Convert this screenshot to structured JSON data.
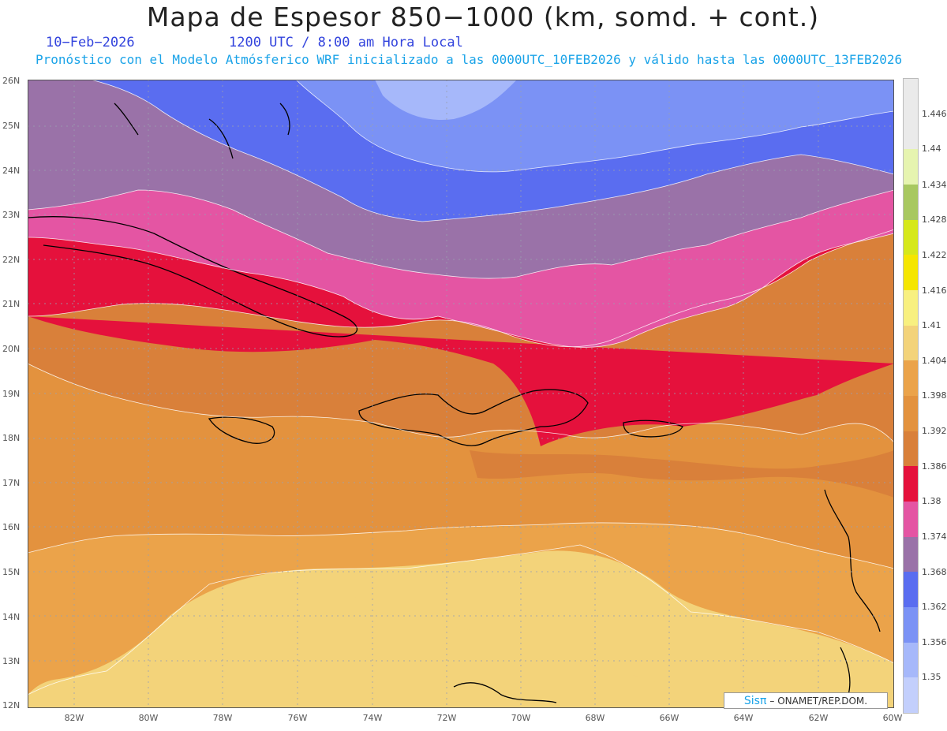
{
  "header": {
    "title": "Mapa de Espesor 850−1000 (km, somd. + cont.)",
    "date": "10−Feb−2026",
    "time": "1200 UTC / 8:00 am Hora Local",
    "description": "Pronóstico con el Modelo Atmósferico WRF inicializado a las 0000UTC_10FEB2026 y válido hasta las  0000UTC_13FEB2026"
  },
  "map": {
    "lat_labels": [
      "26N",
      "25N",
      "24N",
      "23N",
      "22N",
      "21N",
      "20N",
      "19N",
      "18N",
      "17N",
      "16N",
      "15N",
      "14N",
      "13N",
      "12N"
    ],
    "lon_labels": [
      "82W",
      "80W",
      "78W",
      "76W",
      "74W",
      "72W",
      "70W",
      "68W",
      "66W",
      "64W",
      "62W",
      "60W"
    ],
    "lat_range": [
      12,
      26
    ],
    "lon_range": [
      -83.2,
      -60
    ]
  },
  "colorbar": {
    "labels": [
      "1.446",
      "1.44",
      "1.434",
      "1.428",
      "1.422",
      "1.416",
      "1.41",
      "1.404",
      "1.398",
      "1.392",
      "1.386",
      "1.38",
      "1.374",
      "1.368",
      "1.362",
      "1.356",
      "1.35"
    ],
    "colors": [
      "#eaeaea",
      "#e6f4b0",
      "#a8c860",
      "#d6e81a",
      "#f5e600",
      "#f8f080",
      "#f3d37a",
      "#eba34a",
      "#e3923e",
      "#d9803a",
      "#e5113c",
      "#e455a3",
      "#9a72a8",
      "#5a6df0",
      "#7b92f5",
      "#a6b8fa",
      "#c3cffc"
    ],
    "accent_warm": "#e5113c",
    "accent_cool": "#5a6df0"
  },
  "credit": {
    "brand": "Sisπ",
    "text": "– ONAMET/REP.DOM."
  }
}
